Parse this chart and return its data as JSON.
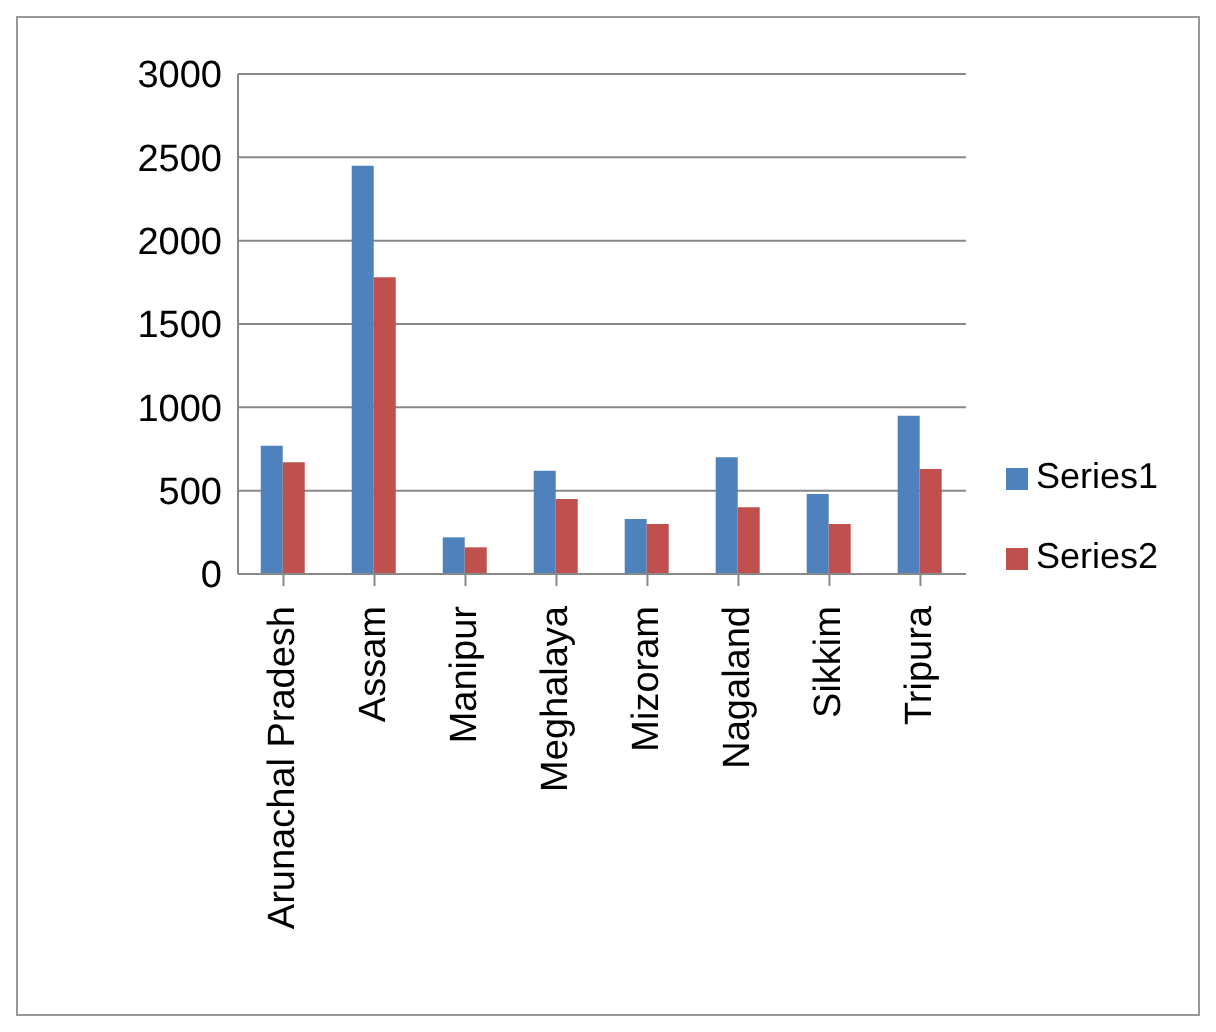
{
  "chart_data": {
    "type": "bar",
    "categories": [
      "Arunachal Pradesh",
      "Assam",
      "Manipur",
      "Meghalaya",
      "Mizoram",
      "Nagaland",
      "Sikkim",
      "Tripura"
    ],
    "series": [
      {
        "name": "Series1",
        "color": "#4f81bd",
        "values": [
          770,
          2450,
          220,
          620,
          330,
          700,
          480,
          950
        ]
      },
      {
        "name": "Series2",
        "color": "#c0504d",
        "values": [
          670,
          1780,
          160,
          450,
          300,
          400,
          300,
          630
        ]
      }
    ],
    "ylim": [
      0,
      3000
    ],
    "yticks": [
      0,
      500,
      1000,
      1500,
      2000,
      2500,
      3000
    ],
    "grid": "y",
    "legend": "right"
  }
}
